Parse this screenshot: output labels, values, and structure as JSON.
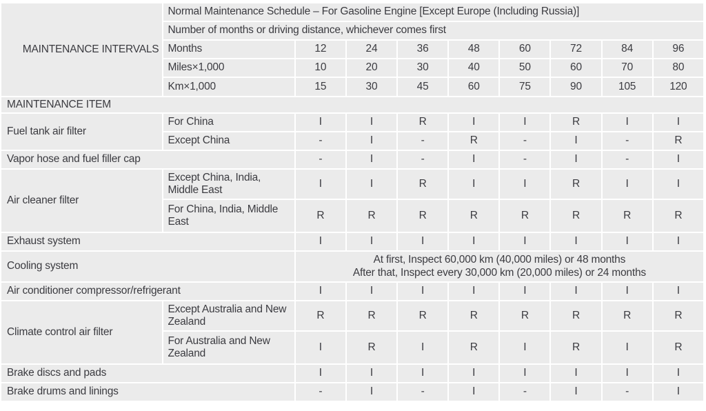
{
  "table": {
    "corner_label": "MAINTENANCE INTERVALS",
    "title": "Normal Maintenance Schedule – For Gasoline Engine [Except Europe (Including Russia)]",
    "subtitle": "Number of months or driving distance, whichever comes first",
    "interval_rows": [
      {
        "label": "Months",
        "values": [
          "12",
          "24",
          "36",
          "48",
          "60",
          "72",
          "84",
          "96"
        ]
      },
      {
        "label": "Miles×1,000",
        "values": [
          "10",
          "20",
          "30",
          "40",
          "50",
          "60",
          "70",
          "80"
        ]
      },
      {
        "label": "Km×1,000",
        "values": [
          "15",
          "30",
          "45",
          "60",
          "75",
          "90",
          "105",
          "120"
        ]
      }
    ],
    "section_header": "MAINTENANCE ITEM",
    "items": [
      {
        "item": "Fuel tank air filter",
        "variants": [
          {
            "label": "For China",
            "values": [
              "I",
              "I",
              "R",
              "I",
              "I",
              "R",
              "I",
              "I"
            ]
          },
          {
            "label": "Except China",
            "values": [
              "-",
              "I",
              "-",
              "R",
              "-",
              "I",
              "-",
              "R"
            ]
          }
        ]
      },
      {
        "item": "Vapor hose and fuel filler cap",
        "values": [
          "-",
          "I",
          "-",
          "I",
          "-",
          "I",
          "-",
          "I"
        ]
      },
      {
        "item": "Air cleaner filter",
        "variants": [
          {
            "label": "Except China, India, Middle East",
            "values": [
              "I",
              "I",
              "R",
              "I",
              "I",
              "R",
              "I",
              "I"
            ]
          },
          {
            "label": "For China, India, Middle East",
            "values": [
              "R",
              "R",
              "R",
              "R",
              "R",
              "R",
              "R",
              "R"
            ]
          }
        ]
      },
      {
        "item": "Exhaust system",
        "values": [
          "I",
          "I",
          "I",
          "I",
          "I",
          "I",
          "I",
          "I"
        ]
      },
      {
        "item": "Cooling system",
        "note": [
          "At first, Inspect 60,000 km (40,000 miles) or 48 months",
          "After that, Inspect every 30,000 km (20,000 miles) or 24 months"
        ]
      },
      {
        "item": "Air conditioner compressor/refrigerant",
        "values": [
          "I",
          "I",
          "I",
          "I",
          "I",
          "I",
          "I",
          "I"
        ]
      },
      {
        "item": "Climate control air filter",
        "variants": [
          {
            "label": "Except Australia and New Zealand",
            "values": [
              "R",
              "R",
              "R",
              "R",
              "R",
              "R",
              "R",
              "R"
            ]
          },
          {
            "label": "For Australia and New Zealand",
            "values": [
              "I",
              "R",
              "I",
              "R",
              "I",
              "R",
              "I",
              "R"
            ]
          }
        ]
      },
      {
        "item": "Brake discs and pads",
        "values": [
          "I",
          "I",
          "I",
          "I",
          "I",
          "I",
          "I",
          "I"
        ]
      },
      {
        "item": "Brake drums and linings",
        "values": [
          "-",
          "I",
          "-",
          "I",
          "-",
          "I",
          "-",
          "I"
        ]
      }
    ],
    "colors": {
      "cell_background": "#ebebeb",
      "grid_line": "#ffffff",
      "text": "#3b3b40"
    }
  }
}
